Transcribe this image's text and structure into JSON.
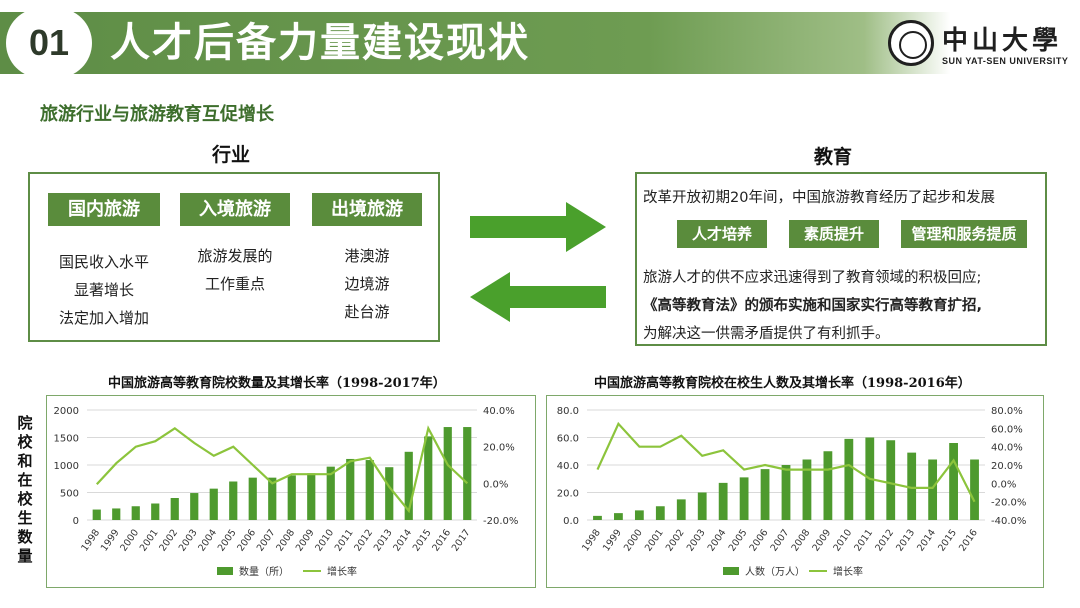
{
  "header": {
    "number": "01",
    "title": "人才后备力量建设现状",
    "logo_cn": "中山大學",
    "logo_en": "SUN YAT-SEN UNIVERSITY"
  },
  "subtitle": "旅游行业与旅游教育互促增长",
  "industry": {
    "label": "行业",
    "categories": [
      {
        "tag": "国内旅游",
        "lines": [
          "国民收入水平",
          "显著增长",
          "法定加入增加"
        ]
      },
      {
        "tag": "入境旅游",
        "lines": [
          "旅游发展的",
          "工作重点"
        ]
      },
      {
        "tag": "出境旅游",
        "lines": [
          "港澳游",
          "边境游",
          "赴台游"
        ]
      }
    ]
  },
  "education": {
    "label": "教育",
    "intro": "改革开放初期20年间，中国旅游教育经历了起步和发展",
    "tags": [
      "人才培养",
      "素质提升",
      "管理和服务提质"
    ],
    "line1": "旅游人才的供不应求迅速得到了教育领域的积极回应;",
    "line2": "《高等教育法》的颁布实施和国家实行高等教育扩招,",
    "line3": "为解决这一供需矛盾提供了有利抓手。"
  },
  "side_label": "院校和在校生数量",
  "colors": {
    "green_dark": "#5a8c3c",
    "bar": "#4e9a2e",
    "line": "#8cc43c",
    "arrow": "#4aa02c"
  },
  "chart_data": [
    {
      "type": "bar",
      "title": "中国旅游高等教育院校数量及其增长率（1998-2017年）",
      "categories": [
        "1998",
        "1999",
        "2000",
        "2001",
        "2002",
        "2003",
        "2004",
        "2005",
        "2006",
        "2007",
        "2008",
        "2009",
        "2010",
        "2011",
        "2012",
        "2013",
        "2014",
        "2015",
        "2016",
        "2017"
      ],
      "series": [
        {
          "name": "数量（所）",
          "type": "bar",
          "axis": "left",
          "values": [
            190,
            210,
            250,
            300,
            400,
            490,
            570,
            700,
            770,
            770,
            810,
            850,
            970,
            1110,
            1090,
            960,
            1240,
            1520,
            1690,
            1690
          ]
        },
        {
          "name": "增长率",
          "type": "line",
          "axis": "right",
          "values": [
            -0.5,
            11,
            20,
            23,
            30,
            22,
            15,
            20,
            10,
            0,
            5,
            5,
            5,
            12,
            14,
            -2,
            -15,
            30,
            10,
            0
          ]
        }
      ],
      "y_left": {
        "ticks": [
          "0",
          "500",
          "1000",
          "1500",
          "2000"
        ],
        "range": [
          0,
          2000
        ]
      },
      "y_right": {
        "ticks": [
          "-20.0%",
          "0.0%",
          "20.0%",
          "40.0%"
        ],
        "range": [
          -20,
          40
        ]
      },
      "legend": "bottom"
    },
    {
      "type": "bar",
      "title": "中国旅游高等教育院校在校生人数及其增长率（1998-2016年）",
      "categories": [
        "1998",
        "1999",
        "2000",
        "2001",
        "2002",
        "2003",
        "2004",
        "2005",
        "2006",
        "2007",
        "2008",
        "2009",
        "2010",
        "2011",
        "2012",
        "2013",
        "2014",
        "2015",
        "2016"
      ],
      "series": [
        {
          "name": "人数（万人）",
          "type": "bar",
          "axis": "left",
          "values": [
            3,
            5,
            7,
            10,
            15,
            20,
            27,
            31,
            37,
            40,
            44,
            50,
            59,
            60,
            58,
            49,
            44,
            56,
            44
          ]
        },
        {
          "name": "增长率",
          "type": "line",
          "axis": "right",
          "values": [
            15,
            65,
            40,
            40,
            52,
            30,
            36,
            15,
            20,
            15,
            15,
            15,
            20,
            5,
            0,
            -5,
            -5,
            25,
            -20
          ]
        }
      ],
      "y_left": {
        "ticks": [
          "0.0",
          "20.0",
          "40.0",
          "60.0",
          "80.0"
        ],
        "range": [
          0,
          80
        ]
      },
      "y_right": {
        "ticks": [
          "-40.0%",
          "-20.0%",
          "0.0%",
          "20.0%",
          "40.0%",
          "60.0%",
          "80.0%"
        ],
        "range": [
          -40,
          80
        ]
      },
      "legend": "bottom"
    }
  ]
}
